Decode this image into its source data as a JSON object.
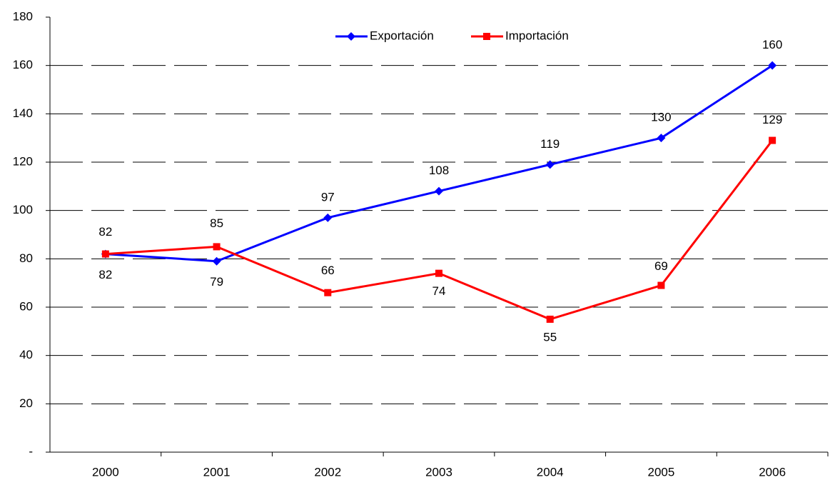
{
  "chart_data": {
    "type": "line",
    "categories": [
      "2000",
      "2001",
      "2002",
      "2003",
      "2004",
      "2005",
      "2006"
    ],
    "series": [
      {
        "name": "Exportación",
        "color": "#0000ff",
        "values": [
          82,
          79,
          97,
          108,
          119,
          130,
          160
        ]
      },
      {
        "name": "Importación",
        "color": "#ff0000",
        "values": [
          82,
          85,
          66,
          74,
          55,
          69,
          129
        ]
      }
    ],
    "ylim": [
      0,
      180
    ],
    "yticks": [
      {
        "value": 0,
        "label": "-"
      },
      20,
      40,
      60,
      80,
      100,
      120,
      140,
      160,
      180
    ],
    "grid": true,
    "legend": "top"
  }
}
